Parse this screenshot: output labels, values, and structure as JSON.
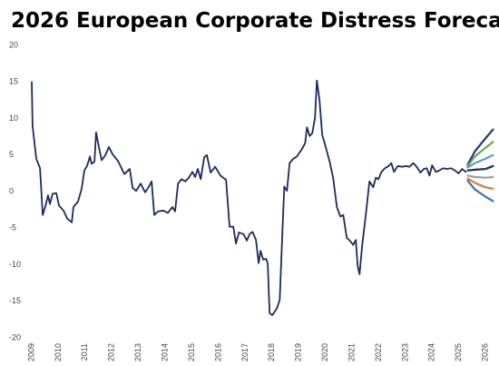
{
  "chart_data": {
    "type": "line",
    "title": "2026 European Corporate Distress Forecast",
    "xlim": [
      2009,
      2026.3
    ],
    "ylim": [
      -20,
      20
    ],
    "xticks": [
      2009,
      2010,
      2011,
      2012,
      2013,
      2014,
      2015,
      2016,
      2017,
      2018,
      2019,
      2020,
      2021,
      2022,
      2023,
      2024,
      2025,
      2026
    ],
    "yticks": [
      -20,
      -15,
      -10,
      -5,
      0,
      5,
      10,
      15,
      20
    ],
    "grid": false,
    "series": [
      {
        "color": "#1b2a5e",
        "x": [
          2009.0,
          2009.03,
          2009.17,
          2009.31,
          2009.41,
          2009.51,
          2009.61,
          2009.68,
          2009.78,
          2009.92,
          2010.02,
          2010.19,
          2010.33,
          2010.5,
          2010.56,
          2010.73,
          2010.87,
          2010.97,
          2011.07,
          2011.18,
          2011.24,
          2011.35,
          2011.41,
          2011.52,
          2011.62,
          2011.76,
          2011.89,
          2012.03,
          2012.23,
          2012.47,
          2012.67,
          2012.78,
          2012.91,
          2013.08,
          2013.18,
          2013.25,
          2013.39,
          2013.49,
          2013.59,
          2013.73,
          2013.93,
          2014.1,
          2014.27,
          2014.37,
          2014.48,
          2014.61,
          2014.75,
          2014.88,
          2015.02,
          2015.12,
          2015.22,
          2015.33,
          2015.46,
          2015.56,
          2015.7,
          2015.87,
          2016.07,
          2016.28,
          2016.41,
          2016.55,
          2016.65,
          2016.76,
          2016.93,
          2017.06,
          2017.16,
          2017.27,
          2017.4,
          2017.5,
          2017.57,
          2017.67,
          2017.78,
          2017.84,
          2017.91,
          2018.01,
          2018.18,
          2018.29,
          2018.39,
          2018.46,
          2018.56,
          2018.66,
          2018.8,
          2018.93,
          2019.1,
          2019.24,
          2019.31,
          2019.41,
          2019.51,
          2019.61,
          2019.68,
          2019.78,
          2019.88,
          2020.02,
          2020.16,
          2020.29,
          2020.43,
          2020.56,
          2020.67,
          2020.8,
          2020.94,
          2021.04,
          2021.14,
          2021.21,
          2021.28,
          2021.38,
          2021.52,
          2021.65,
          2021.79,
          2021.89,
          2021.99,
          2022.1,
          2022.23,
          2022.37,
          2022.47,
          2022.57,
          2022.71,
          2022.88,
          2023.01,
          2023.15,
          2023.29,
          2023.42,
          2023.56,
          2023.69,
          2023.8,
          2023.9,
          2024.0,
          2024.14,
          2024.27,
          2024.41,
          2024.54,
          2024.71,
          2024.85,
          2024.99,
          2025.12,
          2025.26
        ],
        "values": [
          15,
          9,
          4.5,
          3.2,
          -3.2,
          -2,
          -0.5,
          -1.7,
          -0.3,
          -0.2,
          -1.9,
          -2.6,
          -3.7,
          -4.2,
          -2.1,
          -1.4,
          0.4,
          2.9,
          3.5,
          4.8,
          3.8,
          4.1,
          8.1,
          6,
          4.3,
          5,
          6.1,
          5.1,
          4.2,
          2.4,
          3.1,
          0.5,
          0.1,
          1.1,
          0.4,
          -0.1,
          0.7,
          1.4,
          -3.2,
          -2.7,
          -2.6,
          -2.9,
          -2.1,
          -2.7,
          1.1,
          1.7,
          1.4,
          1.9,
          2.7,
          2,
          3.1,
          1.7,
          4.7,
          5,
          2.6,
          3.4,
          2.2,
          1.6,
          -4.8,
          -4.8,
          -7.1,
          -5.6,
          -5.8,
          -6.7,
          -5.8,
          -5.5,
          -6.6,
          -9.8,
          -8.1,
          -9.3,
          -9.2,
          -9.8,
          -16.6,
          -16.9,
          -16,
          -14.8,
          -5.5,
          0.7,
          0.1,
          3.9,
          4.5,
          4.8,
          5.7,
          6.6,
          8.8,
          7.6,
          8,
          10.1,
          15.2,
          12.5,
          7.8,
          6,
          4.1,
          1.9,
          -2.1,
          -3.4,
          -3.2,
          -6.3,
          -6.8,
          -7.3,
          -6.6,
          -10.2,
          -11.3,
          -7.3,
          -3,
          1.4,
          0.6,
          1.9,
          1.7,
          2.7,
          3.2,
          3.5,
          3.9,
          2.7,
          3.5,
          3.4,
          3.5,
          3.4,
          3.9,
          3.4,
          2.6,
          3.1,
          3.2,
          2.2,
          3.6,
          2.7,
          2.9,
          3.2,
          3.1,
          3.2,
          2.9,
          2.5,
          3.1,
          2.7
        ]
      },
      {
        "color": "#1f3a6e",
        "x": [
          2025.33,
          2025.6,
          2026.0,
          2026.28
        ],
        "values": [
          3.7,
          5.5,
          7.3,
          8.5
        ]
      },
      {
        "color": "#6aa84f",
        "x": [
          2025.33,
          2025.6,
          2026.0,
          2026.28
        ],
        "values": [
          3.5,
          4.8,
          6.0,
          6.8
        ]
      },
      {
        "color": "#5b9bd5",
        "x": [
          2025.33,
          2025.6,
          2026.0,
          2026.28
        ],
        "values": [
          3.3,
          3.9,
          4.5,
          5.0
        ]
      },
      {
        "color": "#1b2a5e",
        "x": [
          2025.33,
          2025.6,
          2026.0,
          2026.28
        ],
        "values": [
          2.9,
          3.0,
          3.1,
          3.5
        ]
      },
      {
        "color": "#9e9e9e",
        "x": [
          2025.33,
          2025.6,
          2026.0,
          2026.28
        ],
        "values": [
          2.2,
          2.0,
          1.9,
          2.0
        ]
      },
      {
        "color": "#e07b28",
        "x": [
          2025.33,
          2025.6,
          2026.0,
          2026.28
        ],
        "values": [
          1.8,
          1.2,
          0.6,
          0.4
        ]
      },
      {
        "color": "#3a70c0",
        "x": [
          2025.33,
          2025.6,
          2026.0,
          2026.28
        ],
        "values": [
          1.5,
          0.3,
          -0.7,
          -1.3
        ]
      }
    ]
  }
}
